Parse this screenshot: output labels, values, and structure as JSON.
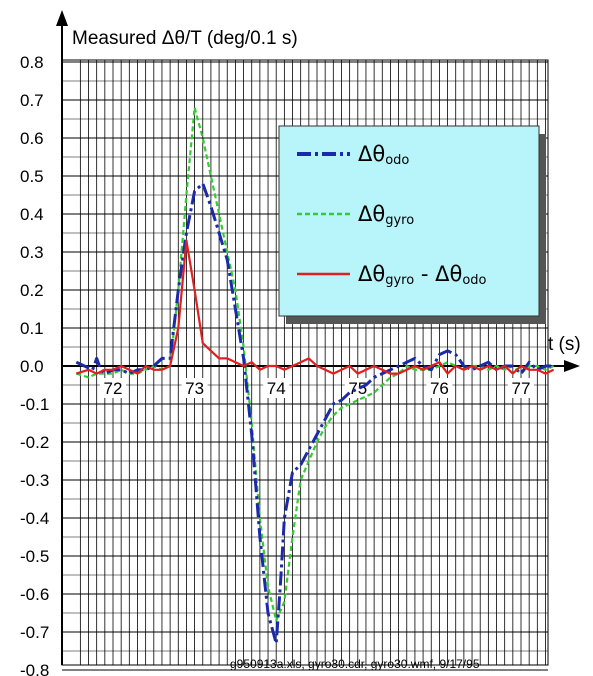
{
  "chart_data": {
    "type": "line",
    "ylabel": "Measured Δθ/T (deg/0.1 s)",
    "xlabel": "t (s)",
    "ylim": [
      -0.8,
      0.8
    ],
    "xlim": [
      71.55,
      77.6
    ],
    "yticks": [
      "0.8",
      "0.7",
      "0.6",
      "0.5",
      "0.4",
      "0.3",
      "0.2",
      "0.1",
      "0.0",
      "-0.1",
      "-0.2",
      "-0.3",
      "-0.4",
      "-0.5",
      "-0.6",
      "-0.7",
      "-0.8"
    ],
    "xticks": [
      "72",
      "73",
      "74",
      "75",
      "76",
      "77"
    ],
    "grid": true,
    "legend_placement": "top-right",
    "footnote": "g950913a.xls, gyro30.cdr, gyro30.wmf, 9/17/95",
    "series": [
      {
        "main": "Δθ",
        "sub": "odo",
        "color": "#1a2aa8",
        "dash": "14,4,3,4",
        "x": [
          71.55,
          71.65,
          71.75,
          71.8,
          71.85,
          71.9,
          72.0,
          72.1,
          72.2,
          72.3,
          72.4,
          72.5,
          72.6,
          72.7,
          72.8,
          72.9,
          73.0,
          73.1,
          73.2,
          73.3,
          73.4,
          73.5,
          73.6,
          73.7,
          73.8,
          73.9,
          74.0,
          74.05,
          74.1,
          74.2,
          74.3,
          74.4,
          74.5,
          74.6,
          74.7,
          74.8,
          74.9,
          75.0,
          75.1,
          75.2,
          75.3,
          75.4,
          75.5,
          75.6,
          75.7,
          75.8,
          75.9,
          76.0,
          76.1,
          76.2,
          76.3,
          76.4,
          76.5,
          76.6,
          76.7,
          76.8,
          76.9,
          77.0,
          77.1,
          77.2,
          77.3,
          77.4
        ],
        "y": [
          0.01,
          0.0,
          -0.01,
          0.02,
          -0.01,
          -0.02,
          -0.01,
          -0.01,
          -0.02,
          -0.01,
          -0.01,
          0.0,
          0.02,
          0.02,
          0.2,
          0.35,
          0.46,
          0.48,
          0.42,
          0.35,
          0.28,
          0.15,
          0.02,
          -0.18,
          -0.45,
          -0.65,
          -0.73,
          -0.58,
          -0.4,
          -0.28,
          -0.26,
          -0.22,
          -0.18,
          -0.14,
          -0.1,
          -0.09,
          -0.07,
          -0.06,
          -0.05,
          -0.03,
          -0.02,
          -0.01,
          0.0,
          0.01,
          0.02,
          0.0,
          -0.01,
          0.03,
          0.04,
          0.03,
          0.0,
          -0.01,
          0.0,
          0.01,
          -0.01,
          0.0,
          0.0,
          -0.02,
          0.01,
          -0.01,
          0.0,
          0.0
        ]
      },
      {
        "main": "Δθ",
        "sub": "gyro",
        "color": "#33cc33",
        "dash": "5,3",
        "x": [
          71.55,
          71.7,
          71.8,
          71.9,
          72.0,
          72.1,
          72.2,
          72.3,
          72.4,
          72.5,
          72.6,
          72.7,
          72.8,
          72.9,
          73.0,
          73.1,
          73.2,
          73.3,
          73.4,
          73.5,
          73.6,
          73.7,
          73.8,
          73.9,
          74.0,
          74.1,
          74.2,
          74.3,
          74.4,
          74.5,
          74.6,
          74.7,
          74.8,
          74.9,
          75.0,
          75.1,
          75.2,
          75.3,
          75.4,
          75.5,
          75.6,
          75.7,
          75.8,
          75.9,
          76.0,
          76.1,
          76.2,
          76.3,
          76.4,
          76.5,
          76.6,
          76.7,
          76.8,
          76.9,
          77.0,
          77.1,
          77.2,
          77.3,
          77.4
        ],
        "y": [
          -0.02,
          -0.03,
          -0.02,
          -0.02,
          -0.02,
          -0.01,
          -0.02,
          -0.02,
          -0.01,
          0.0,
          -0.01,
          0.0,
          0.2,
          0.45,
          0.68,
          0.6,
          0.5,
          0.4,
          0.3,
          0.2,
          0.05,
          -0.15,
          -0.4,
          -0.58,
          -0.67,
          -0.62,
          -0.45,
          -0.3,
          -0.25,
          -0.2,
          -0.16,
          -0.13,
          -0.11,
          -0.1,
          -0.09,
          -0.08,
          -0.07,
          -0.05,
          -0.03,
          -0.02,
          0.0,
          -0.01,
          -0.01,
          -0.01,
          0.0,
          0.01,
          0.0,
          -0.01,
          0.0,
          0.0,
          -0.01,
          0.0,
          -0.01,
          0.0,
          -0.02,
          0.0,
          0.0,
          -0.01,
          0.0
        ]
      },
      {
        "main": "Δθ",
        "sub": "gyro",
        "suffix_main": "Δθ",
        "suffix_sub": "odo",
        "color": "#e02020",
        "dash": "",
        "x": [
          71.55,
          71.7,
          71.8,
          71.9,
          72.0,
          72.1,
          72.2,
          72.3,
          72.4,
          72.5,
          72.6,
          72.7,
          72.8,
          72.9,
          73.0,
          73.1,
          73.2,
          73.3,
          73.4,
          73.5,
          73.6,
          73.7,
          73.8,
          73.9,
          74.0,
          74.1,
          74.2,
          74.3,
          74.4,
          74.5,
          74.6,
          74.7,
          74.8,
          74.9,
          75.0,
          75.1,
          75.2,
          75.3,
          75.4,
          75.5,
          75.6,
          75.7,
          75.8,
          75.9,
          76.0,
          76.1,
          76.2,
          76.3,
          76.4,
          76.5,
          76.6,
          76.7,
          76.8,
          76.9,
          77.0,
          77.1,
          77.2,
          77.3,
          77.4
        ],
        "y": [
          -0.02,
          -0.01,
          -0.02,
          -0.01,
          -0.01,
          0.0,
          -0.01,
          -0.02,
          0.0,
          -0.01,
          -0.01,
          0.0,
          0.1,
          0.33,
          0.2,
          0.06,
          0.04,
          0.02,
          0.02,
          0.01,
          0.0,
          0.01,
          -0.01,
          0.0,
          0.0,
          -0.01,
          0.0,
          0.01,
          0.02,
          0.0,
          -0.01,
          -0.02,
          -0.01,
          0.0,
          -0.02,
          -0.01,
          0.0,
          -0.01,
          -0.02,
          -0.02,
          -0.01,
          0.0,
          -0.01,
          0.0,
          0.01,
          -0.02,
          0.0,
          -0.01,
          0.0,
          -0.01,
          0.0,
          -0.01,
          0.0,
          -0.02,
          0.0,
          -0.01,
          -0.01,
          -0.02,
          -0.01
        ]
      }
    ]
  }
}
